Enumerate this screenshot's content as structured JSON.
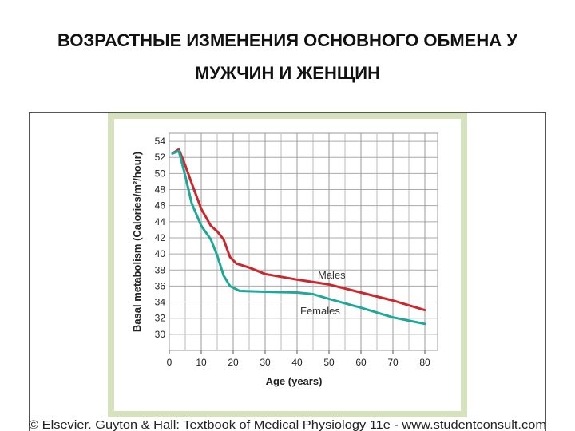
{
  "chart_data": {
    "type": "line",
    "title": "ВОЗРАСТНЫЕ ИЗМЕНЕНИЯ ОСНОВНОГО ОБМЕНА У МУЖЧИН И ЖЕНЩИН",
    "xlabel": "Age (years)",
    "ylabel": "Basal metabolism (Calories/m²/hour)",
    "footer": "© Elsevier. Guyton & Hall: Textbook of Medical Physiology 11e - www.studentconsult.com",
    "xlim": [
      0,
      84
    ],
    "ylim": [
      28,
      55
    ],
    "xticks": [
      0,
      10,
      20,
      30,
      40,
      50,
      60,
      70,
      80
    ],
    "xminor_ticks": [
      5,
      15,
      25,
      35,
      45,
      55,
      65,
      75
    ],
    "yticks": [
      30,
      32,
      34,
      36,
      38,
      40,
      42,
      44,
      46,
      48,
      50,
      52,
      54
    ],
    "grid": true,
    "series": [
      {
        "name": "Males",
        "color": "#c9282d",
        "x": [
          1,
          3,
          5,
          7,
          10,
          13,
          15,
          17,
          19,
          21,
          25,
          30,
          40,
          50,
          60,
          70,
          80
        ],
        "values": [
          52.5,
          53,
          51,
          48.8,
          45.6,
          43.5,
          42.8,
          41.8,
          39.6,
          38.8,
          38.3,
          37.5,
          36.8,
          36.2,
          35.2,
          34.2,
          33
        ]
      },
      {
        "name": "Females",
        "color": "#1fa89a",
        "x": [
          1,
          3,
          5,
          7,
          10,
          13,
          15,
          17,
          19,
          22,
          30,
          40,
          45,
          50,
          60,
          70,
          80
        ],
        "values": [
          52.5,
          52.8,
          49.7,
          46.3,
          43.5,
          41.8,
          39.8,
          37.3,
          36,
          35.4,
          35.3,
          35.2,
          35,
          34.4,
          33.3,
          32.1,
          31.3
        ]
      }
    ]
  }
}
